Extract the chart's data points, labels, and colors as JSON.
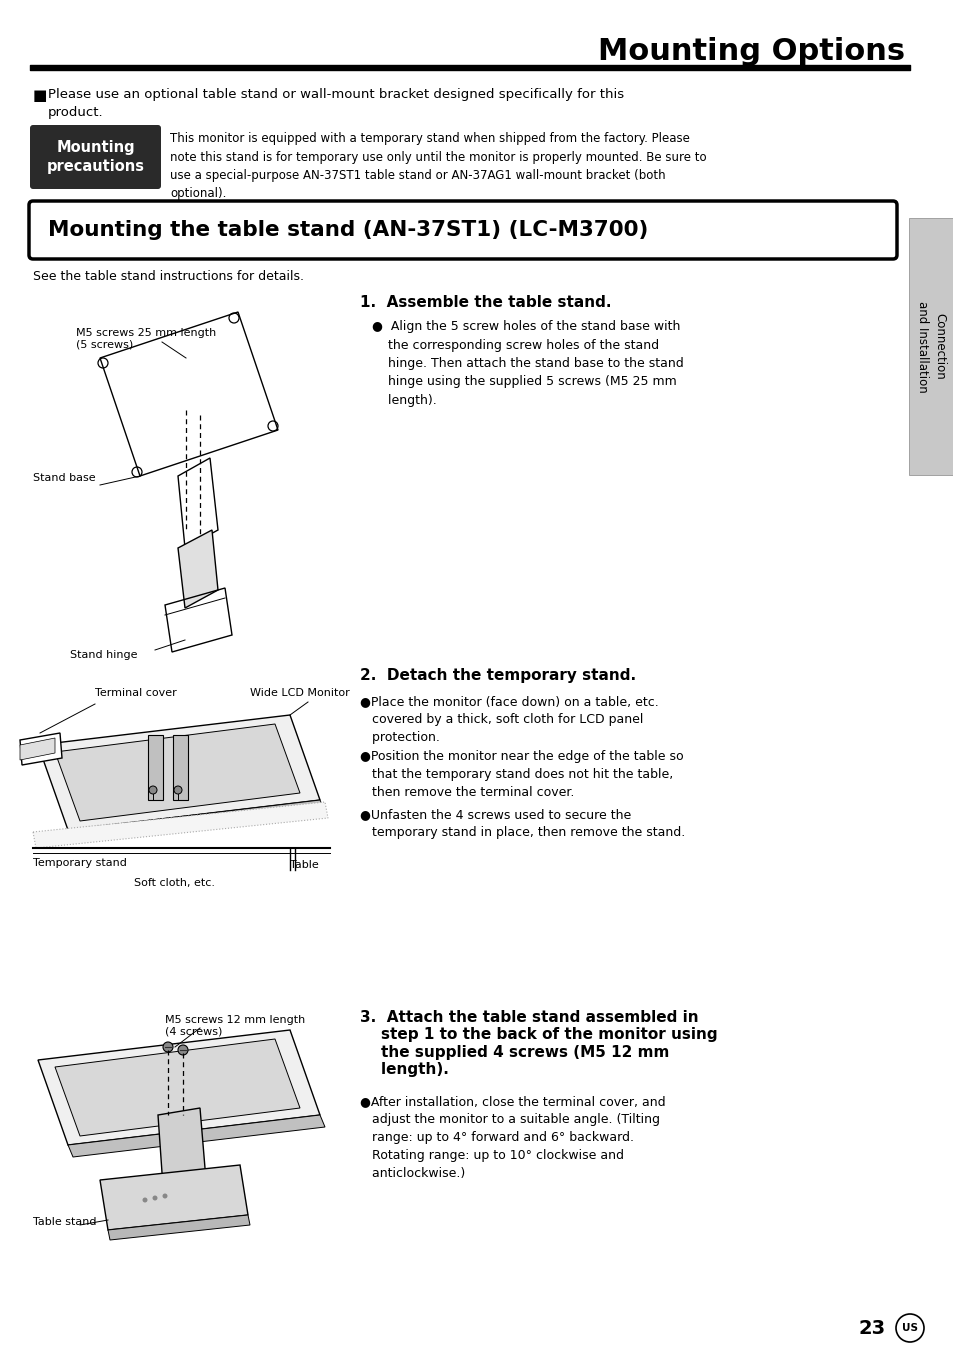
{
  "page_title": "Mounting Options",
  "bg_color": "#ffffff",
  "bullet_intro_sq": "■",
  "bullet_intro_text": "Please use an optional table stand or wall-mount bracket designed specifically for this\nproduct.",
  "precautions_label": "Mounting\nprecautions",
  "precautions_label_bg": "#2a2a2a",
  "precautions_label_color": "#ffffff",
  "precautions_text": "This monitor is equipped with a temporary stand when shipped from the factory. Please\nnote this stand is for temporary use only until the monitor is properly mounted. Be sure to\nuse a special-purpose AN-37ST1 table stand or AN-37AG1 wall-mount bracket (both\noptional).",
  "section_box_title": "Mounting the table stand (AN-37ST1) (LC-M3700)",
  "see_text": "See the table stand instructions for details.",
  "step1_title": "1.  Assemble the table stand.",
  "step1_bullet": "●  Align the 5 screw holes of the stand base with\n    the corresponding screw holes of the stand\n    hinge. Then attach the stand base to the stand\n    hinge using the supplied 5 screws (M5 25 mm\n    length).",
  "step2_title": "2.  Detach the temporary stand.",
  "step2_b1": "●Place the monitor (face down) on a table, etc.\n   covered by a thick, soft cloth for LCD panel\n   protection.",
  "step2_b2": "●Position the monitor near the edge of the table so\n   that the temporary stand does not hit the table,\n   then remove the terminal cover.",
  "step2_b3": "●Unfasten the 4 screws used to secure the\n   temporary stand in place, then remove the stand.",
  "step3_title": "3.  Attach the table stand assembled in\n    step 1 to the back of the monitor using\n    the supplied 4 screws (M5 12 mm\n    length).",
  "step3_bullet": "●After installation, close the terminal cover, and\n   adjust the monitor to a suitable angle. (Tilting\n   range: up to 4° forward and 6° backward.\n   Rotating range: up to 10° clockwise and\n   anticlockwise.)",
  "fig1_label0": "M5 screws 25 mm length\n(5 screws)",
  "fig1_label1": "Stand base",
  "fig1_label2": "Stand hinge",
  "fig2_label0": "Terminal cover",
  "fig2_label1": "Wide LCD Monitor",
  "fig2_label2": "Temporary stand",
  "fig2_label3": "Table",
  "fig2_label4": "Soft cloth, etc.",
  "fig3_label0": "M5 screws 12 mm length\n(4 screws)",
  "fig3_label1": "Table stand",
  "sidebar_text": "Connection\nand Installation",
  "sidebar_bg": "#c8c8c8",
  "sidebar_border": "#888888",
  "page_number": "23"
}
